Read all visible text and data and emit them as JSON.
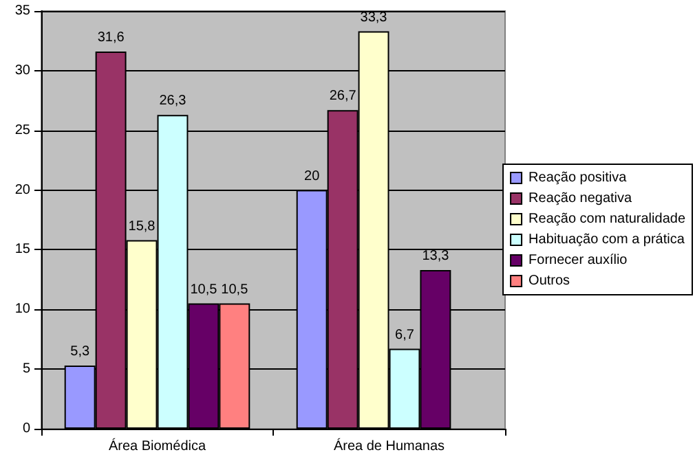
{
  "chart_data": {
    "type": "bar",
    "categories": [
      "Área Biomédica",
      "Área de Humanas"
    ],
    "series": [
      {
        "name": "Reação positiva",
        "color": "#9999ff",
        "values": [
          5.3,
          20
        ],
        "value_labels": [
          "5,3",
          "20"
        ]
      },
      {
        "name": "Reação negativa",
        "color": "#993366",
        "values": [
          31.6,
          26.7
        ],
        "value_labels": [
          "31,6",
          "26,7"
        ]
      },
      {
        "name": "Reação com naturalidade",
        "color": "#ffffcc",
        "values": [
          15.8,
          33.3
        ],
        "value_labels": [
          "15,8",
          "33,3"
        ]
      },
      {
        "name": "Habituação com a prática",
        "color": "#ccffff",
        "values": [
          26.3,
          6.7
        ],
        "value_labels": [
          "26,3",
          "6,7"
        ]
      },
      {
        "name": "Fornecer auxílio",
        "color": "#660066",
        "values": [
          10.5,
          13.3
        ],
        "value_labels": [
          "10,5",
          "13,3"
        ]
      },
      {
        "name": "Outros",
        "color": "#ff8080",
        "values": [
          10.5,
          null
        ],
        "value_labels": [
          "10,5",
          null
        ]
      }
    ],
    "ylim": [
      0,
      35
    ],
    "yticks": [
      0,
      5,
      10,
      15,
      20,
      25,
      30,
      35
    ],
    "grid": "y",
    "legend": "right"
  }
}
